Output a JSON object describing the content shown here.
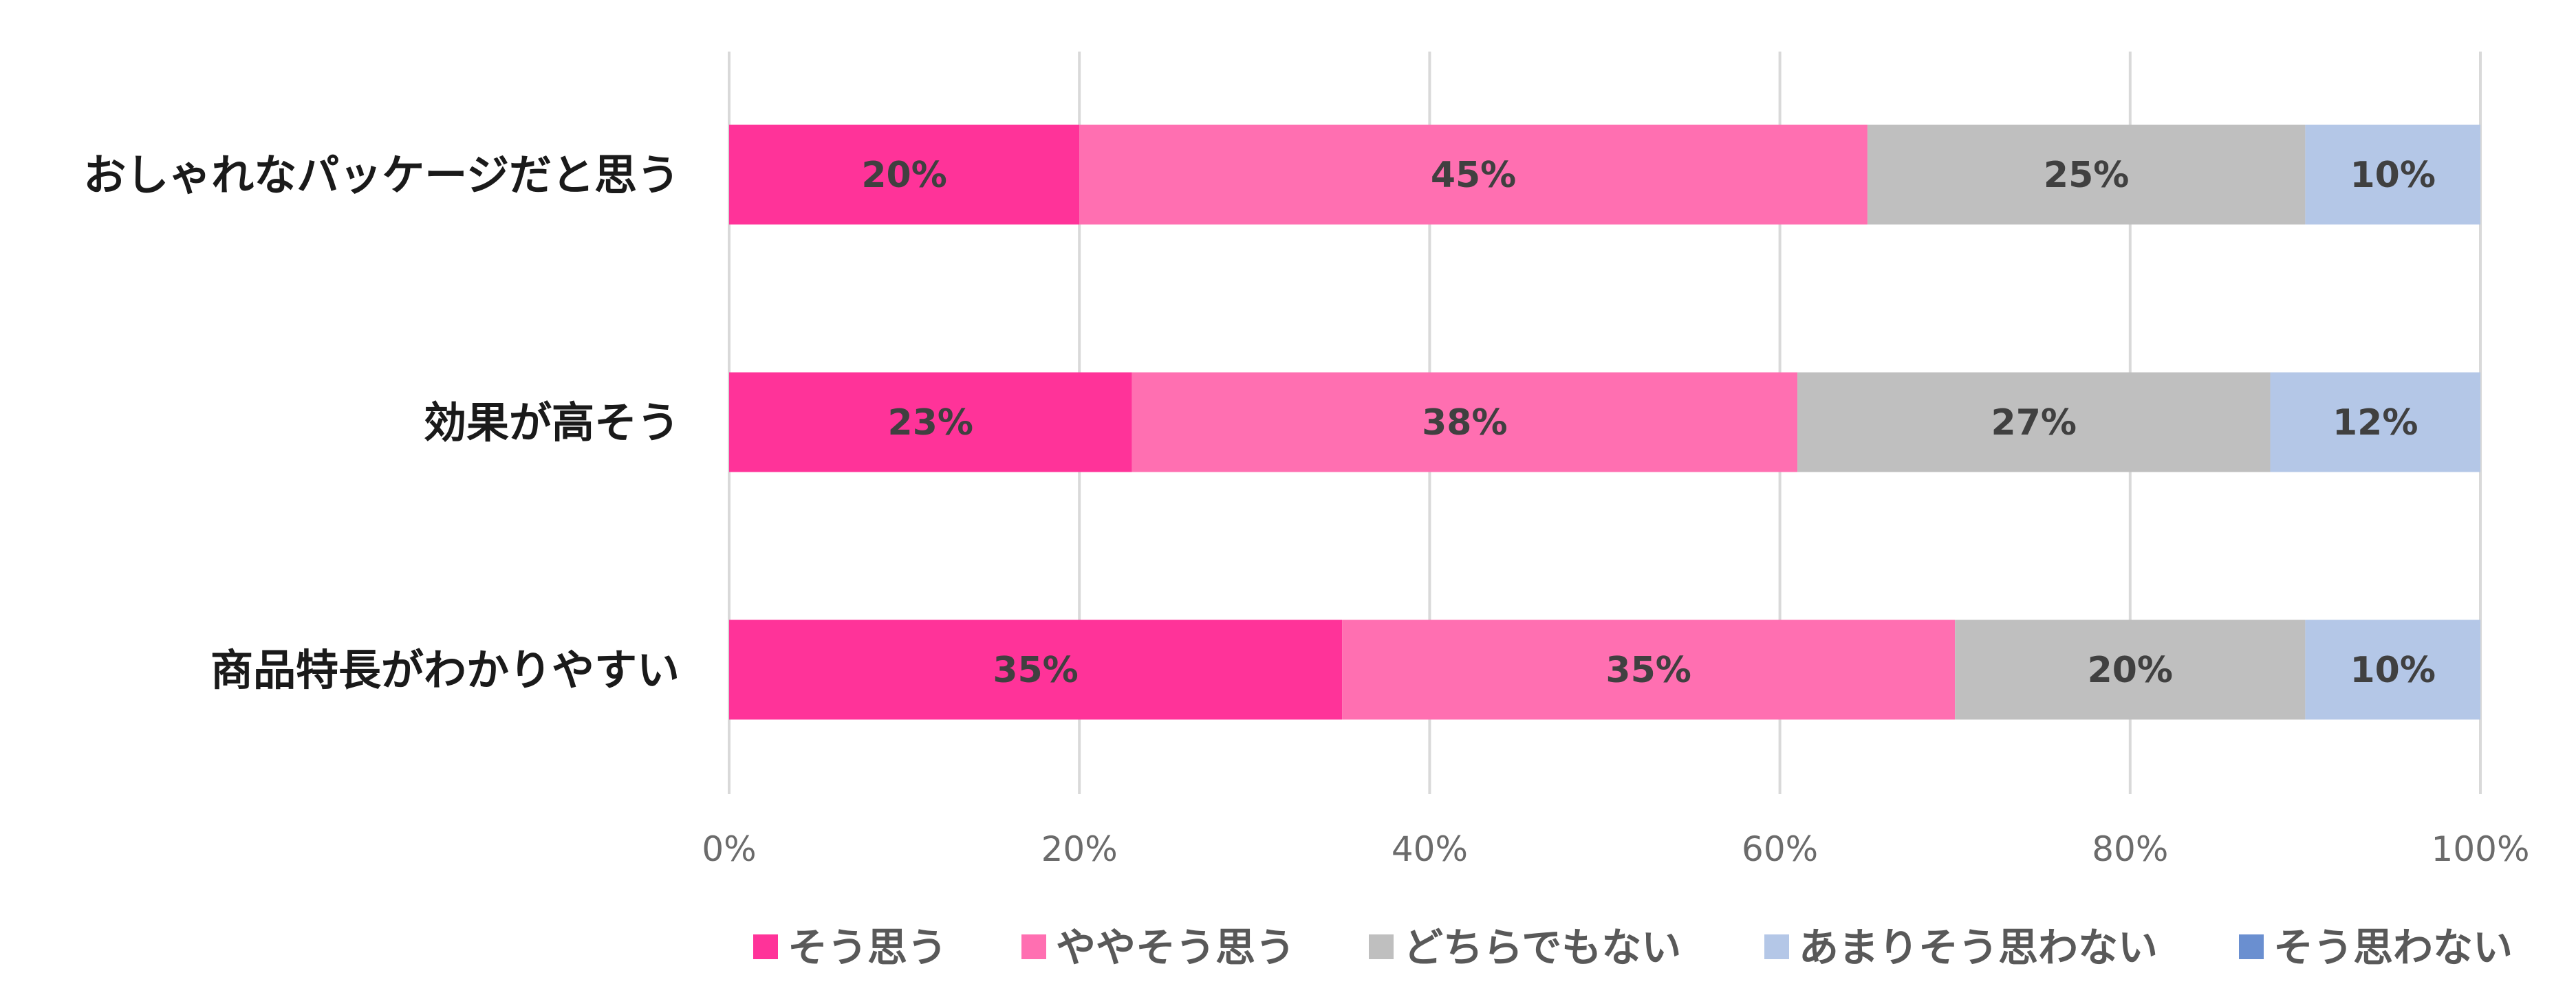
{
  "chart_data": {
    "type": "bar",
    "orientation": "horizontal",
    "stacked": true,
    "categories": [
      "おしゃれなパッケージだと思う",
      "効果が高そう",
      "商品特長がわかりやすい"
    ],
    "series": [
      {
        "name": "そう思う",
        "color": "#ff3399",
        "values": [
          20,
          23,
          35
        ]
      },
      {
        "name": "ややそう思う",
        "color": "#ff6fb1",
        "values": [
          45,
          38,
          35
        ]
      },
      {
        "name": "どちらでもない",
        "color": "#bfbfbf",
        "values": [
          25,
          27,
          20
        ]
      },
      {
        "name": "あまりそう思わない",
        "color": "#b4c7e7",
        "values": [
          10,
          12,
          10
        ]
      },
      {
        "name": "そう思わない",
        "color": "#6a8fd0",
        "values": [
          0,
          0,
          0
        ]
      }
    ],
    "value_labels": [
      [
        "20%",
        "45%",
        "25%",
        "10%",
        ""
      ],
      [
        "23%",
        "38%",
        "27%",
        "12%",
        ""
      ],
      [
        "35%",
        "35%",
        "20%",
        "10%",
        ""
      ]
    ],
    "x_ticks": [
      "0%",
      "20%",
      "40%",
      "60%",
      "80%",
      "100%"
    ],
    "xlim": [
      0,
      100
    ],
    "grid": true,
    "legend": "bottom"
  }
}
